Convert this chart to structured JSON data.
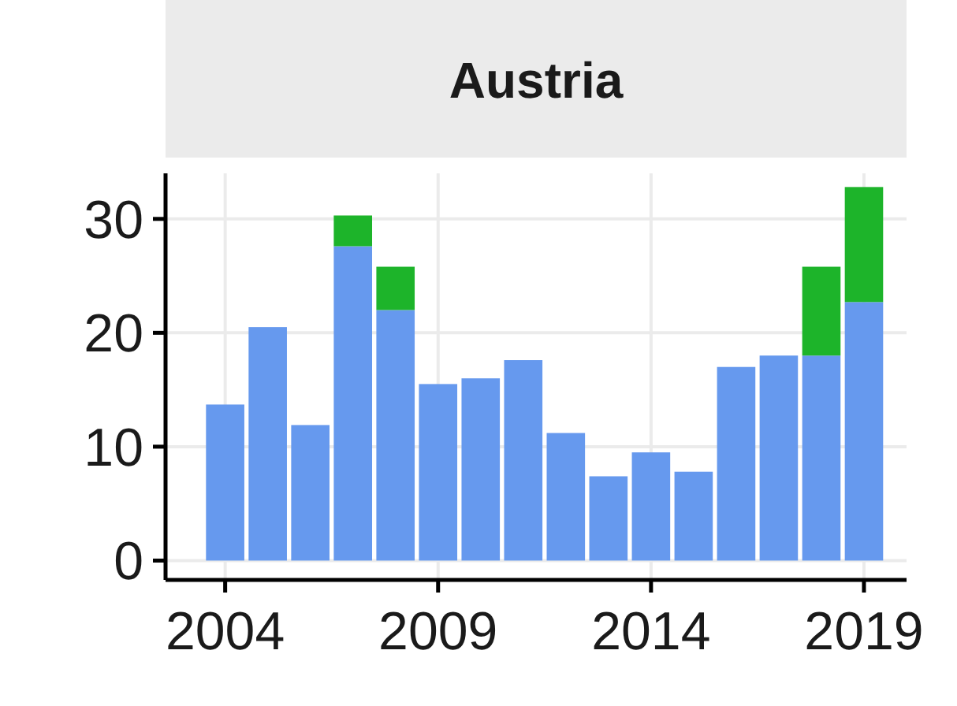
{
  "chart_data": {
    "type": "bar",
    "title": "Austria",
    "x": [
      2004,
      2005,
      2006,
      2007,
      2008,
      2009,
      2010,
      2011,
      2012,
      2013,
      2014,
      2015,
      2016,
      2017,
      2018,
      2019
    ],
    "stacked": true,
    "series": [
      {
        "color": "#6699ee",
        "values": [
          13.7,
          20.5,
          11.9,
          27.6,
          22.0,
          15.5,
          16.0,
          17.6,
          11.2,
          7.4,
          9.5,
          7.8,
          17.0,
          18.0,
          18.0,
          22.7
        ]
      },
      {
        "color": "#1db42a",
        "values": [
          null,
          null,
          null,
          2.7,
          3.8,
          null,
          null,
          null,
          null,
          null,
          null,
          null,
          null,
          null,
          7.8,
          10.1
        ]
      }
    ],
    "xlim": [
      2002.6,
      2020
    ],
    "xticks": [
      2004,
      2009,
      2014,
      2019
    ],
    "ylim": [
      -1.7,
      34
    ],
    "yticks": [
      0,
      10,
      20,
      30
    ],
    "grid": true
  }
}
